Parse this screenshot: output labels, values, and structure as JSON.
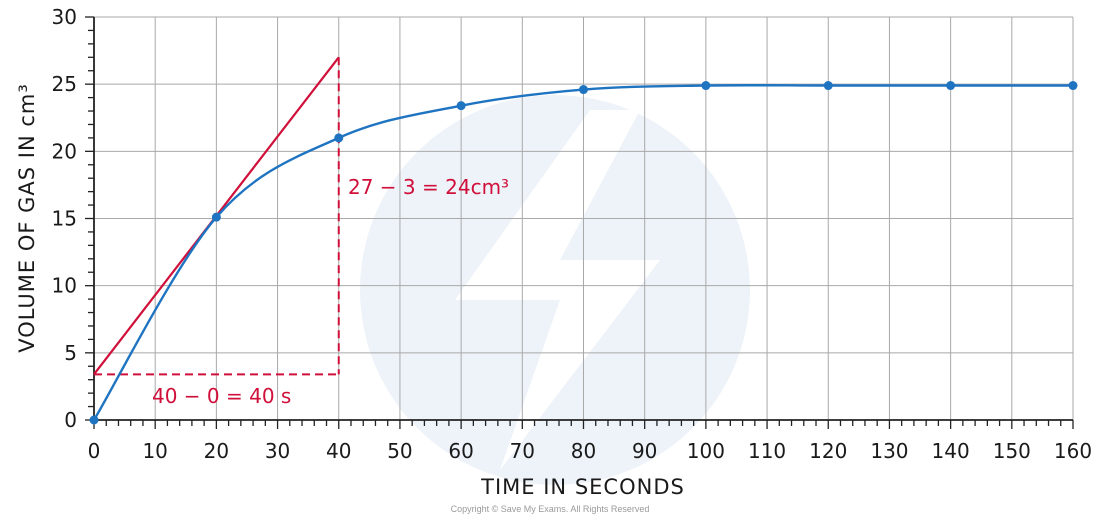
{
  "chart_data": {
    "type": "line",
    "xlabel": "TIME IN SECONDS",
    "ylabel": "VOLUME OF GAS IN cm³",
    "xlim": [
      0,
      160
    ],
    "ylim": [
      0,
      30
    ],
    "x_ticks": [
      0,
      10,
      20,
      30,
      40,
      50,
      60,
      70,
      80,
      90,
      100,
      110,
      120,
      130,
      140,
      150,
      160
    ],
    "y_ticks": [
      0,
      5,
      10,
      15,
      20,
      25,
      30
    ],
    "grid": true,
    "series": [
      {
        "color": "#1f74c1",
        "x": [
          0,
          20,
          40,
          60,
          80,
          100,
          120,
          140,
          160
        ],
        "y": [
          0,
          15.1,
          21,
          23.4,
          24.6,
          24.9,
          24.9,
          24.9,
          24.9
        ]
      }
    ],
    "tangent": {
      "color": "#d0103a",
      "x": [
        0,
        40
      ],
      "y": [
        3.4,
        27
      ]
    },
    "annotations": {
      "rise": "27 − 3 = 24cm³",
      "run": "40 − 0 = 40 s"
    }
  },
  "copyright": "Copyright © Save My Exams. All Rights Reserved"
}
